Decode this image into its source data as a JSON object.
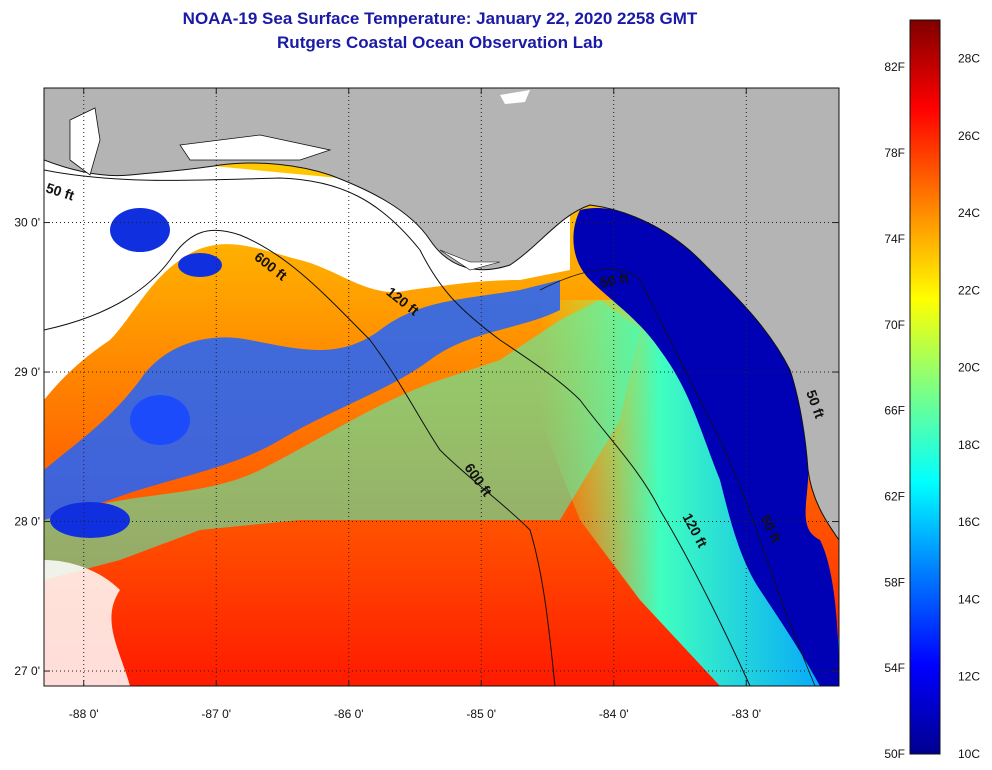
{
  "header": {
    "title": "NOAA-19 Sea Surface Temperature:  January 22, 2020 2258 GMT",
    "subtitle": "Rutgers Coastal Ocean Observation Lab"
  },
  "map": {
    "lon_range": [
      -88.3,
      -82.3
    ],
    "lat_range": [
      26.9,
      30.9
    ],
    "lon_ticks": [
      {
        "value": -88,
        "label": "-88 0'"
      },
      {
        "value": -87,
        "label": "-87 0'"
      },
      {
        "value": -86,
        "label": "-86 0'"
      },
      {
        "value": -85,
        "label": "-85 0'"
      },
      {
        "value": -84,
        "label": "-84 0'"
      },
      {
        "value": -83,
        "label": "-83 0'"
      }
    ],
    "lat_ticks": [
      {
        "value": 30,
        "label": "30 0'"
      },
      {
        "value": 29,
        "label": "29 0'"
      },
      {
        "value": 28,
        "label": "28 0'"
      },
      {
        "value": 27,
        "label": "27 0'"
      }
    ],
    "grid": "dotted",
    "land_color": "#b4b4b4",
    "no_data_color": "#ffffff",
    "contour_labels": [
      "50 ft",
      "600 ft",
      "120 ft",
      "600 ft",
      "50 ft",
      "120 ft",
      "50 ft",
      "50 ft"
    ]
  },
  "colorbar": {
    "range_c": [
      10,
      29
    ],
    "celsius_labels": [
      "28C",
      "26C",
      "24C",
      "22C",
      "20C",
      "18C",
      "16C",
      "14C",
      "12C",
      "10C"
    ],
    "fahrenheit_labels": [
      "82F",
      "78F",
      "74F",
      "70F",
      "66F",
      "62F",
      "58F",
      "54F",
      "50F"
    ],
    "colors": [
      "#00008f",
      "#0000ff",
      "#0080ff",
      "#00ffff",
      "#80ff80",
      "#ffff00",
      "#ff8000",
      "#ff0000",
      "#800000"
    ]
  }
}
